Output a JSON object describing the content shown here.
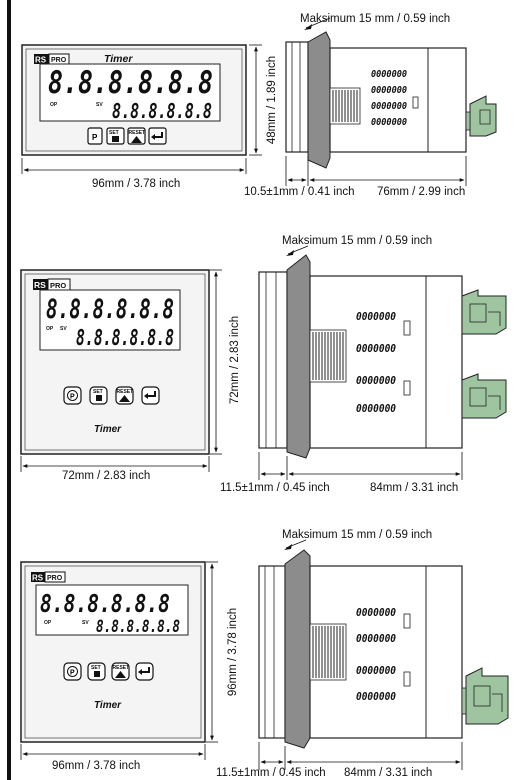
{
  "colors": {
    "frame": "#222222",
    "shaded": "#8c8c8c",
    "panel": "#f4f4f4",
    "terminal": "#9fc5a0"
  },
  "brand": {
    "rs": "RS",
    "pro": "PRO"
  },
  "device": {
    "display_top": "8.8.8.8.8.8",
    "display_bottom": "8.8.8.8.8.8",
    "op_label": "OP",
    "sv_label": "SV",
    "btn_p": "P",
    "btn_set": "SET",
    "btn_reset": "RESET",
    "title": "Timer",
    "vent_pattern": "0000000"
  },
  "units": [
    {
      "id": "48x96",
      "front_width_label": "96mm / 3.78 inch",
      "front_height_label": "48mm / 1.89 inch",
      "max_label": "Maksimum 15 mm / 0.59 inch",
      "offset_label": "10.5±1mm / 0.41 inch",
      "depth_label": "76mm / 2.99 inch"
    },
    {
      "id": "72x72",
      "front_width_label": "72mm / 2.83 inch",
      "front_height_label": "72mm / 2.83 inch",
      "max_label": "Maksimum 15 mm / 0.59 inch",
      "offset_label": "11.5±1mm / 0.45 inch",
      "depth_label": "84mm / 3.31 inch"
    },
    {
      "id": "96x96",
      "front_width_label": "96mm / 3.78 inch",
      "front_height_label": "96mm / 3.78 inch",
      "max_label": "Maksimum 15 mm / 0.59 inch",
      "offset_label": "11.5±1mm / 0.45 inch",
      "depth_label": "84mm / 3.31 inch"
    }
  ]
}
